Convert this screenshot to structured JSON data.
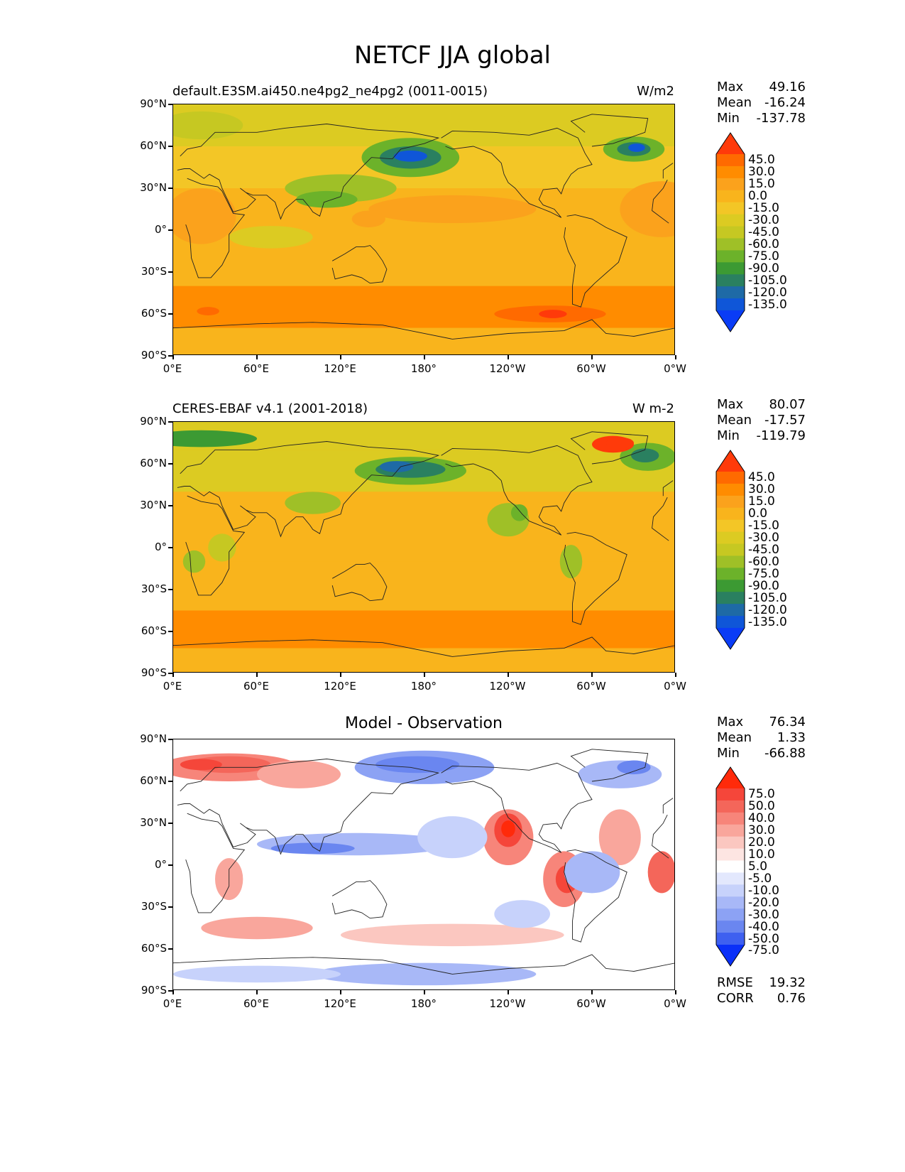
{
  "figure_title": "NETCF JJA global",
  "x_ticks": [
    "0°E",
    "60°E",
    "120°E",
    "180°",
    "120°W",
    "60°W",
    "0°W"
  ],
  "y_ticks": [
    "90°N",
    "60°N",
    "30°N",
    "0°",
    "30°S",
    "60°S",
    "90°S"
  ],
  "panels": [
    {
      "id": "model",
      "title_left": "default.E3SM.ai450.ne4pg2_ne4pg2 (0011-0015)",
      "title_right": "W/m2",
      "title_center": "",
      "stats": [
        {
          "label": "Max",
          "value": "49.16"
        },
        {
          "label": "Mean",
          "value": "-16.24"
        },
        {
          "label": "Min",
          "value": "-137.78"
        }
      ],
      "extra_stats": [],
      "colorbar": {
        "levels": [
          "45.0",
          "30.0",
          "15.0",
          "0.0",
          "-15.0",
          "-30.0",
          "-45.0",
          "-60.0",
          "-75.0",
          "-90.0",
          "-105.0",
          "-120.0",
          "-135.0"
        ],
        "colors": [
          "#ff3a0a",
          "#ff6a00",
          "#ff8c00",
          "#fba21c",
          "#f9b41c",
          "#f3c626",
          "#dccb22",
          "#c6c822",
          "#9fc027",
          "#6cb22a",
          "#3c9a33",
          "#2a8060",
          "#1e6aa6",
          "#0f56d8",
          "#0a3cf6"
        ]
      }
    },
    {
      "id": "obs",
      "title_left": "CERES-EBAF v4.1 (2001-2018)",
      "title_right": "W m-2",
      "title_center": "",
      "stats": [
        {
          "label": "Max",
          "value": "80.07"
        },
        {
          "label": "Mean",
          "value": "-17.57"
        },
        {
          "label": "Min",
          "value": "-119.79"
        }
      ],
      "extra_stats": [],
      "colorbar": {
        "levels": [
          "45.0",
          "30.0",
          "15.0",
          "0.0",
          "-15.0",
          "-30.0",
          "-45.0",
          "-60.0",
          "-75.0",
          "-90.0",
          "-105.0",
          "-120.0",
          "-135.0"
        ],
        "colors": [
          "#ff3a0a",
          "#ff6a00",
          "#ff8c00",
          "#fba21c",
          "#f9b41c",
          "#f3c626",
          "#dccb22",
          "#c6c822",
          "#9fc027",
          "#6cb22a",
          "#3c9a33",
          "#2a8060",
          "#1e6aa6",
          "#0f56d8",
          "#0a3cf6"
        ]
      }
    },
    {
      "id": "diff",
      "title_left": "",
      "title_right": "",
      "title_center": "Model - Observation",
      "stats": [
        {
          "label": "Max",
          "value": "76.34"
        },
        {
          "label": "Mean",
          "value": "1.33"
        },
        {
          "label": "Min",
          "value": "-66.88"
        }
      ],
      "extra_stats": [
        {
          "label": "RMSE",
          "value": "19.32"
        },
        {
          "label": "CORR",
          "value": "0.76"
        }
      ],
      "colorbar": {
        "levels": [
          "75.0",
          "50.0",
          "40.0",
          "30.0",
          "20.0",
          "10.0",
          "5.0",
          "-5.0",
          "-10.0",
          "-20.0",
          "-30.0",
          "-40.0",
          "-50.0",
          "-75.0"
        ],
        "colors": [
          "#ff2a0a",
          "#f5463a",
          "#f4665a",
          "#f7857a",
          "#f9a69c",
          "#fbc7c0",
          "#fde5e2",
          "#ffffff",
          "#e3e8fd",
          "#c7d2fb",
          "#a8b8f7",
          "#8ca2f4",
          "#6a86f0",
          "#3e60f0",
          "#0a30f8"
        ]
      }
    }
  ],
  "chart_data": [
    {
      "type": "heatmap",
      "title": "default.E3SM.ai450.ne4pg2_ne4pg2 (0011-0015)",
      "units": "W/m2",
      "xlabel": "",
      "ylabel": "",
      "xlim": [
        0,
        360
      ],
      "ylim": [
        -90,
        90
      ],
      "stats": {
        "max": 49.16,
        "mean": -16.24,
        "min": -137.78
      },
      "contour_levels": [
        -135,
        -120,
        -105,
        -90,
        -75,
        -60,
        -45,
        -30,
        -15,
        0,
        15,
        30,
        45
      ]
    },
    {
      "type": "heatmap",
      "title": "CERES-EBAF v4.1 (2001-2018)",
      "units": "W m-2",
      "xlabel": "",
      "ylabel": "",
      "xlim": [
        0,
        360
      ],
      "ylim": [
        -90,
        90
      ],
      "stats": {
        "max": 80.07,
        "mean": -17.57,
        "min": -119.79
      },
      "contour_levels": [
        -135,
        -120,
        -105,
        -90,
        -75,
        -60,
        -45,
        -30,
        -15,
        0,
        15,
        30,
        45
      ]
    },
    {
      "type": "heatmap",
      "title": "Model - Observation",
      "xlabel": "",
      "ylabel": "",
      "xlim": [
        0,
        360
      ],
      "ylim": [
        -90,
        90
      ],
      "stats": {
        "max": 76.34,
        "mean": 1.33,
        "min": -66.88,
        "rmse": 19.32,
        "corr": 0.76
      },
      "contour_levels": [
        -75,
        -50,
        -40,
        -30,
        -20,
        -10,
        -5,
        5,
        10,
        20,
        30,
        40,
        50,
        75
      ]
    }
  ]
}
